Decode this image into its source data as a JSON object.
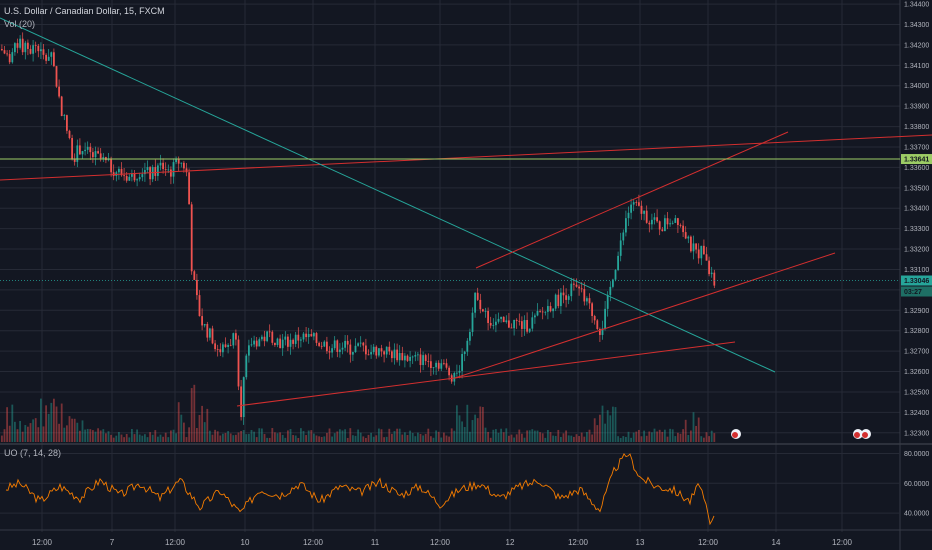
{
  "header": {
    "symbol_line": "U.S. Dollar / Canadian Dollar, 15, FXCM",
    "volume_indicator": "Vol (20)",
    "oscillator_indicator": "UO (7, 14, 28)"
  },
  "colors": {
    "background": "#131722",
    "grid": "#262a36",
    "up": "#26a69a",
    "down": "#ef5350",
    "trendline_red": "#d32f2f",
    "trendline_teal": "#26a69a",
    "horizontal_green": "#9ccc65",
    "oscillator": "#f57c00"
  },
  "price_axis": {
    "ticks": [
      "1.34400",
      "1.34300",
      "1.34200",
      "1.34100",
      "1.34000",
      "1.33900",
      "1.33800",
      "1.33700",
      "1.33600",
      "1.33500",
      "1.33400",
      "1.33300",
      "1.33200",
      "1.33100",
      "1.33000",
      "1.32900",
      "1.32800",
      "1.32700",
      "1.32600",
      "1.32500",
      "1.32400",
      "1.32300"
    ],
    "current_price_tag": "1.33046",
    "countdown_tag": "03:27",
    "level_tag": "1.33641"
  },
  "oscillator_axis": {
    "ticks": [
      "80.0000",
      "60.0000",
      "40.0000"
    ]
  },
  "time_axis": {
    "labels": [
      "12:00",
      "7",
      "12:00",
      "10",
      "12:00",
      "11",
      "12:00",
      "12",
      "12:00",
      "13",
      "12:00",
      "14",
      "12:00"
    ]
  },
  "chart_data": [
    {
      "type": "candlestick",
      "title": "U.S. Dollar / Canadian Dollar, 15, FXCM",
      "ylim": [
        1.3225,
        1.3442
      ],
      "x_labels": [
        "12:00",
        "7",
        "12:00",
        "10",
        "12:00",
        "11",
        "12:00",
        "12",
        "12:00",
        "13",
        "12:00",
        "14",
        "12:00"
      ],
      "price_path": [
        [
          0,
          1.3418
        ],
        [
          8,
          1.3414
        ],
        [
          18,
          1.342
        ],
        [
          28,
          1.3417
        ],
        [
          36,
          1.342
        ],
        [
          44,
          1.3412
        ],
        [
          50,
          1.3418
        ],
        [
          58,
          1.3394
        ],
        [
          66,
          1.3378
        ],
        [
          72,
          1.3365
        ],
        [
          80,
          1.337
        ],
        [
          90,
          1.3366
        ],
        [
          100,
          1.3364
        ],
        [
          110,
          1.336
        ],
        [
          120,
          1.3357
        ],
        [
          130,
          1.3355
        ],
        [
          140,
          1.3359
        ],
        [
          150,
          1.3356
        ],
        [
          160,
          1.3361
        ],
        [
          170,
          1.3358
        ],
        [
          178,
          1.3363
        ],
        [
          185,
          1.336
        ],
        [
          188,
          1.3345
        ],
        [
          190,
          1.3315
        ],
        [
          194,
          1.33
        ],
        [
          200,
          1.3285
        ],
        [
          206,
          1.328
        ],
        [
          212,
          1.3276
        ],
        [
          218,
          1.327
        ],
        [
          224,
          1.3272
        ],
        [
          230,
          1.3275
        ],
        [
          236,
          1.328
        ],
        [
          238,
          1.325
        ],
        [
          240,
          1.324
        ],
        [
          244,
          1.3262
        ],
        [
          250,
          1.3274
        ],
        [
          260,
          1.3276
        ],
        [
          270,
          1.3278
        ],
        [
          280,
          1.3274
        ],
        [
          290,
          1.3275
        ],
        [
          300,
          1.3277
        ],
        [
          310,
          1.3276
        ],
        [
          320,
          1.3274
        ],
        [
          330,
          1.3272
        ],
        [
          340,
          1.3273
        ],
        [
          350,
          1.3271
        ],
        [
          360,
          1.3272
        ],
        [
          370,
          1.327
        ],
        [
          380,
          1.3271
        ],
        [
          390,
          1.3269
        ],
        [
          400,
          1.3268
        ],
        [
          410,
          1.3266
        ],
        [
          420,
          1.3266
        ],
        [
          430,
          1.3265
        ],
        [
          440,
          1.3264
        ],
        [
          450,
          1.3258
        ],
        [
          458,
          1.3262
        ],
        [
          464,
          1.3272
        ],
        [
          470,
          1.3285
        ],
        [
          476,
          1.33
        ],
        [
          480,
          1.3292
        ],
        [
          486,
          1.3286
        ],
        [
          494,
          1.3284
        ],
        [
          504,
          1.3283
        ],
        [
          514,
          1.3284
        ],
        [
          524,
          1.3282
        ],
        [
          532,
          1.3285
        ],
        [
          540,
          1.3288
        ],
        [
          548,
          1.3292
        ],
        [
          556,
          1.3295
        ],
        [
          564,
          1.3298
        ],
        [
          572,
          1.3301
        ],
        [
          580,
          1.3298
        ],
        [
          590,
          1.329
        ],
        [
          600,
          1.328
        ],
        [
          606,
          1.3292
        ],
        [
          612,
          1.3308
        ],
        [
          618,
          1.3318
        ],
        [
          624,
          1.3332
        ],
        [
          630,
          1.3342
        ],
        [
          636,
          1.334
        ],
        [
          644,
          1.3337
        ],
        [
          652,
          1.3333
        ],
        [
          660,
          1.3331
        ],
        [
          668,
          1.3334
        ],
        [
          676,
          1.3336
        ],
        [
          682,
          1.333
        ],
        [
          688,
          1.3322
        ],
        [
          696,
          1.3318
        ],
        [
          704,
          1.332
        ],
        [
          710,
          1.3306
        ],
        [
          714,
          1.3303
        ]
      ],
      "current_price": 1.33046,
      "horizontal_level": 1.33641
    },
    {
      "type": "bar",
      "title": "Vol (20)",
      "description": "volume histogram beneath the price chart"
    },
    {
      "type": "line",
      "title": "UO (7, 14, 28)",
      "ylim": [
        30,
        85
      ],
      "ticks": [
        80,
        60,
        40
      ],
      "values_path": [
        [
          0,
          55
        ],
        [
          20,
          60
        ],
        [
          40,
          48
        ],
        [
          60,
          58
        ],
        [
          80,
          50
        ],
        [
          100,
          62
        ],
        [
          120,
          52
        ],
        [
          140,
          60
        ],
        [
          160,
          50
        ],
        [
          180,
          62
        ],
        [
          200,
          44
        ],
        [
          220,
          55
        ],
        [
          240,
          40
        ],
        [
          260,
          56
        ],
        [
          280,
          52
        ],
        [
          300,
          60
        ],
        [
          320,
          48
        ],
        [
          340,
          58
        ],
        [
          360,
          54
        ],
        [
          380,
          61
        ],
        [
          400,
          52
        ],
        [
          420,
          58
        ],
        [
          440,
          46
        ],
        [
          460,
          56
        ],
        [
          480,
          60
        ],
        [
          500,
          50
        ],
        [
          520,
          58
        ],
        [
          540,
          62
        ],
        [
          560,
          50
        ],
        [
          580,
          56
        ],
        [
          600,
          42
        ],
        [
          615,
          70
        ],
        [
          628,
          80
        ],
        [
          640,
          64
        ],
        [
          656,
          58
        ],
        [
          672,
          56
        ],
        [
          690,
          48
        ],
        [
          700,
          60
        ],
        [
          710,
          32
        ],
        [
          714,
          36
        ]
      ]
    }
  ]
}
